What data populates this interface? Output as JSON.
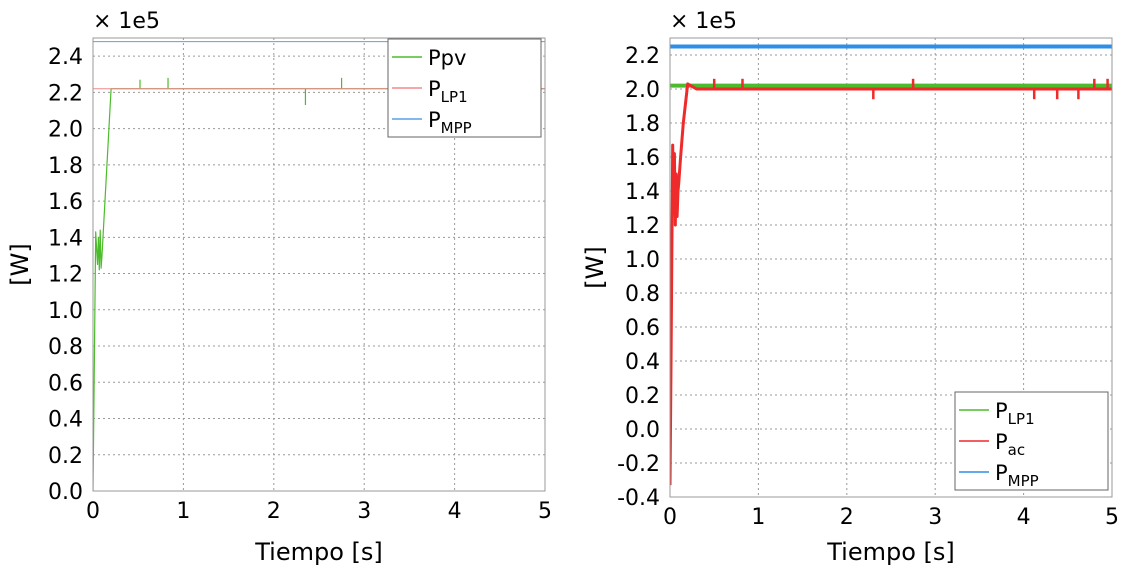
{
  "chart_data": [
    {
      "type": "line",
      "scale_label": "× 1e5",
      "xlabel": "Tiempo [s]",
      "ylabel": "[W]",
      "xlim": [
        0,
        5
      ],
      "ylim": [
        0,
        2.5
      ],
      "xticks": [
        "0",
        "1",
        "2",
        "3",
        "4",
        "5"
      ],
      "yticks": [
        "0.0",
        "0.2",
        "0.4",
        "0.6",
        "0.8",
        "1.0",
        "1.2",
        "1.4",
        "1.6",
        "1.8",
        "2.0",
        "2.2",
        "2.4"
      ],
      "grid": true,
      "legend_position": "top-right",
      "legend": [
        {
          "main": "Ppv",
          "sub": ""
        },
        {
          "main": "P",
          "sub": "LP1"
        },
        {
          "main": "P",
          "sub": "MPP"
        }
      ],
      "series": [
        {
          "name": "Ppv",
          "color": "#4cbb2c",
          "stroke_width": 1.2,
          "x": [
            0,
            0.03,
            0.05,
            0.06,
            0.07,
            0.08,
            0.09,
            0.1,
            0.2,
            0.5,
            1,
            2,
            3,
            4,
            5
          ],
          "y": [
            0,
            1.43,
            1.25,
            1.4,
            1.22,
            1.44,
            1.23,
            1.3,
            2.22,
            2.22,
            2.22,
            2.22,
            2.22,
            2.22,
            2.22
          ],
          "spikes": [
            [
              0.52,
              2.27
            ],
            [
              0.83,
              2.28
            ],
            [
              2.35,
              2.13
            ],
            [
              2.75,
              2.28
            ]
          ]
        },
        {
          "name": "P_LP1",
          "color": "#f0888c",
          "stroke_width": 1,
          "x": [
            0,
            5
          ],
          "y": [
            2.22,
            2.22
          ]
        },
        {
          "name": "P_MPP",
          "color": "#5aa0e8",
          "stroke_width": 1,
          "x": [
            0,
            5
          ],
          "y": [
            2.48,
            2.48
          ]
        }
      ]
    },
    {
      "type": "line",
      "scale_label": "× 1e5",
      "xlabel": "Tiempo [s]",
      "ylabel": "[W]",
      "xlim": [
        0,
        5
      ],
      "ylim": [
        -0.4,
        2.3
      ],
      "xticks": [
        "0",
        "1",
        "2",
        "3",
        "4",
        "5"
      ],
      "yticks": [
        "-0.4",
        "-0.2",
        "0.0",
        "0.2",
        "0.4",
        "0.6",
        "0.8",
        "1.0",
        "1.2",
        "1.4",
        "1.6",
        "1.8",
        "2.0",
        "2.2"
      ],
      "grid": true,
      "legend_position": "bottom-right",
      "legend": [
        {
          "main": "P",
          "sub": "LP1"
        },
        {
          "main": "P",
          "sub": "ac"
        },
        {
          "main": "P",
          "sub": "MPP"
        }
      ],
      "series": [
        {
          "name": "P_LP1",
          "color": "#4cbb2c",
          "stroke_width": 4,
          "x": [
            0,
            5
          ],
          "y": [
            2.02,
            2.02
          ]
        },
        {
          "name": "P_ac",
          "color": "#ee2a2a",
          "stroke_width": 3,
          "x": [
            0,
            0.01,
            0.02,
            0.03,
            0.04,
            0.05,
            0.06,
            0.07,
            0.08,
            0.09,
            0.1,
            0.12,
            0.15,
            0.2,
            0.3,
            1,
            2,
            3,
            4,
            5
          ],
          "y": [
            -0.33,
            0.3,
            1.0,
            1.67,
            1.3,
            1.62,
            1.2,
            1.5,
            1.25,
            1.4,
            1.45,
            1.6,
            1.8,
            2.03,
            2.0,
            2.0,
            2.0,
            2.0,
            2.0,
            2.0
          ],
          "spikes": [
            [
              0.5,
              2.06
            ],
            [
              0.82,
              2.06
            ],
            [
              2.3,
              1.94
            ],
            [
              2.75,
              2.06
            ],
            [
              4.12,
              1.94
            ],
            [
              4.38,
              1.94
            ],
            [
              4.62,
              1.94
            ],
            [
              4.8,
              2.06
            ],
            [
              4.95,
              2.06
            ]
          ]
        },
        {
          "name": "P_MPP",
          "color": "#2d8fe6",
          "stroke_width": 4,
          "x": [
            0,
            5
          ],
          "y": [
            2.25,
            2.25
          ]
        }
      ]
    }
  ]
}
